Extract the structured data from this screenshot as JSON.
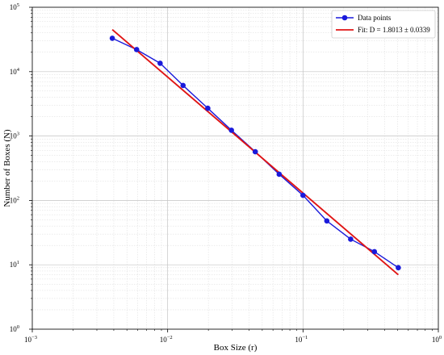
{
  "chart_data": {
    "type": "line",
    "title": "",
    "xlabel": "Box Size (r)",
    "ylabel": "Number of Boxes (N)",
    "xscale": "log",
    "yscale": "log",
    "xlim": [
      0.001,
      1
    ],
    "ylim": [
      1,
      100000
    ],
    "grid": true,
    "legend_position": "top-right",
    "x_ticks": [
      {
        "value": 0.001,
        "base": "10",
        "exp": "−3"
      },
      {
        "value": 0.01,
        "base": "10",
        "exp": "−2"
      },
      {
        "value": 0.1,
        "base": "10",
        "exp": "−1"
      },
      {
        "value": 1,
        "base": "10",
        "exp": "0"
      }
    ],
    "y_ticks": [
      {
        "value": 1,
        "base": "10",
        "exp": "0"
      },
      {
        "value": 10,
        "base": "10",
        "exp": "1"
      },
      {
        "value": 100,
        "base": "10",
        "exp": "2"
      },
      {
        "value": 1000,
        "base": "10",
        "exp": "3"
      },
      {
        "value": 10000,
        "base": "10",
        "exp": "4"
      },
      {
        "value": 100000,
        "base": "10",
        "exp": "5"
      }
    ],
    "series": [
      {
        "name": "Data points",
        "kind": "line-marker",
        "color": "#1a1adb",
        "x": [
          0.0039,
          0.0059,
          0.0088,
          0.013,
          0.0198,
          0.0296,
          0.0444,
          0.0667,
          0.1,
          0.15,
          0.225,
          0.337,
          0.506
        ],
        "y": [
          33000,
          22000,
          13500,
          6100,
          2700,
          1230,
          570,
          255,
          120,
          48,
          25,
          16,
          9
        ]
      },
      {
        "name": "Fit: D = 1.8013 ± 0.0339",
        "kind": "line",
        "color": "#e01414",
        "x": [
          0.0039,
          0.506
        ],
        "y": [
          45000,
          7
        ]
      }
    ]
  }
}
